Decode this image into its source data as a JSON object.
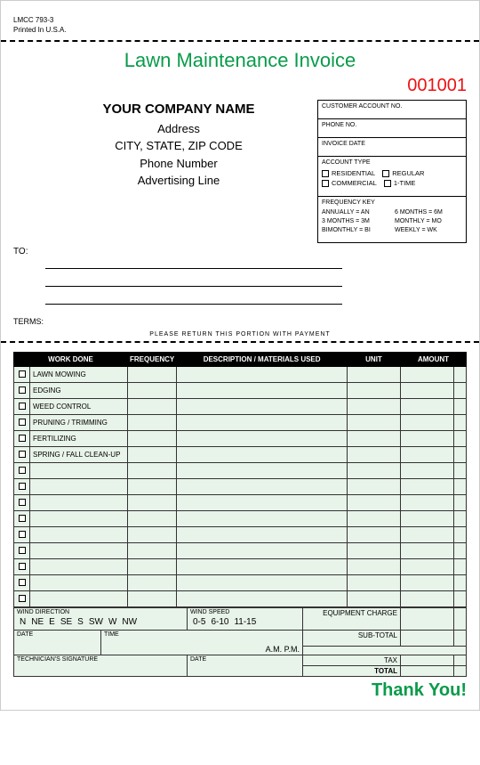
{
  "form_no": "LMCC 793-3",
  "printed": "Printed In U.S.A.",
  "title": "Lawn Maintenance Invoice",
  "invoice_no": "001001",
  "company": {
    "name": "YOUR COMPANY NAME",
    "address": "Address",
    "citystatezip": "CITY, STATE, ZIP CODE",
    "phone": "Phone Number",
    "advertising": "Advertising Line"
  },
  "to_label": "TO:",
  "terms_label": "TERMS:",
  "return_note": "PLEASE RETURN THIS PORTION WITH PAYMENT",
  "acct": {
    "acct_no": "CUSTOMER ACCOUNT NO.",
    "phone": "PHONE NO.",
    "invoice_date": "INVOICE DATE",
    "acct_type": "ACCOUNT TYPE",
    "types": [
      "RESIDENTIAL",
      "REGULAR",
      "COMMERCIAL",
      "1-TIME"
    ],
    "freq_label": "FREQUENCY KEY",
    "freq": [
      "ANNUALLY = AN",
      "6 MONTHS = 6M",
      "3 MONTHS = 3M",
      "MONTHLY = MO",
      "BIMONTHLY = BI",
      "WEEKLY = WK"
    ]
  },
  "headers": {
    "work": "WORK DONE",
    "freq": "FREQUENCY",
    "desc": "DESCRIPTION / MATERIALS USED",
    "unit": "UNIT",
    "amount": "AMOUNT"
  },
  "rows": [
    "LAWN MOWING",
    "EDGING",
    "WEED CONTROL",
    "PRUNING / TRIMMING",
    "FERTILIZING",
    "SPRING / FALL CLEAN-UP",
    "",
    "",
    "",
    "",
    "",
    "",
    "",
    "",
    ""
  ],
  "wind_dir_label": "WIND DIRECTION",
  "wind_dirs": [
    "N",
    "NE",
    "E",
    "SE",
    "S",
    "SW",
    "W",
    "NW"
  ],
  "wind_speed_label": "WIND SPEED",
  "wind_speeds": [
    "0-5",
    "6-10",
    "11-15"
  ],
  "date_label": "DATE",
  "time_label": "TIME",
  "ampm": "A.M.   P.M.",
  "tech_sig": "TECHNICIAN'S SIGNATURE",
  "equipment_charge": "EQUIPMENT CHARGE",
  "subtotal": "SUB-TOTAL",
  "tax": "TAX",
  "total": "TOTAL",
  "thanks": "Thank You!",
  "colors": {
    "green": "#0a9b4a",
    "red": "#e11",
    "rowbg": "#e8f3e9"
  }
}
